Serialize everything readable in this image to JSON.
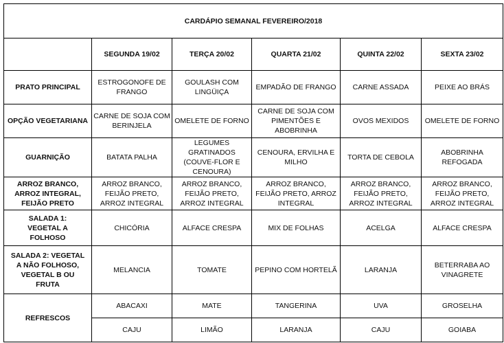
{
  "title": "CARDÁPIO SEMANAL FEVEREIRO/2018",
  "days": [
    "SEGUNDA 19/02",
    "TERÇA 20/02",
    "QUARTA 21/02",
    "QUINTA 22/02",
    "SEXTA 23/02"
  ],
  "rows": [
    {
      "label": "PRATO PRINCIPAL",
      "cells": [
        "ESTROGONOFE DE FRANGO",
        "GOULASH COM LINGÜIÇA",
        "EMPADÃO DE FRANGO",
        "CARNE ASSADA",
        "PEIXE AO BRÁS"
      ]
    },
    {
      "label": "OPÇÃO VEGETARIANA",
      "cells": [
        "CARNE DE SOJA COM BERINJELA",
        "OMELETE DE FORNO",
        "CARNE DE SOJA COM PIMENTÕES E ABOBRINHA",
        "OVOS MEXIDOS",
        "OMELETE DE FORNO"
      ]
    },
    {
      "label": "GUARNIÇÃO",
      "cells": [
        "BATATA PALHA",
        "LEGUMES GRATINADOS (COUVE-FLOR E CENOURA)",
        "CENOURA, ERVILHA E MILHO",
        "TORTA DE CEBOLA",
        "ABOBRINHA REFOGADA"
      ]
    },
    {
      "label": "ARROZ BRANCO, ARROZ INTEGRAL, FEIJÃO PRETO",
      "cells": [
        "ARROZ BRANCO, FEIJÃO PRETO, ARROZ INTEGRAL",
        "ARROZ BRANCO, FEIJÃO PRETO, ARROZ INTEGRAL",
        "ARROZ BRANCO, FEIJÃO PRETO, ARROZ INTEGRAL",
        "ARROZ BRANCO, FEIJÃO PRETO, ARROZ INTEGRAL",
        "ARROZ BRANCO, FEIJÃO PRETO, ARROZ INTEGRAL"
      ]
    },
    {
      "label": "SALADA 1: VEGETAL A FOLHOSO",
      "cells": [
        "CHICÓRIA",
        "ALFACE CRESPA",
        "MIX DE FOLHAS",
        "ACELGA",
        "ALFACE CRESPA"
      ]
    },
    {
      "label": "SALADA 2: VEGETAL A NÃO FOLHOSO, VEGETAL B OU FRUTA",
      "cells": [
        "MELANCIA",
        "TOMATE",
        "PEPINO COM HORTELÃ",
        "LARANJA",
        "BETERRABA AO VINAGRETE"
      ]
    }
  ],
  "refrescos": {
    "label": "REFRESCOS",
    "row1": [
      "ABACAXI",
      "MATE",
      "TANGERINA",
      "UVA",
      "GROSELHA"
    ],
    "row2": [
      "CAJU",
      "LIMÃO",
      "LARANJA",
      "CAJU",
      "GOIABA"
    ]
  }
}
